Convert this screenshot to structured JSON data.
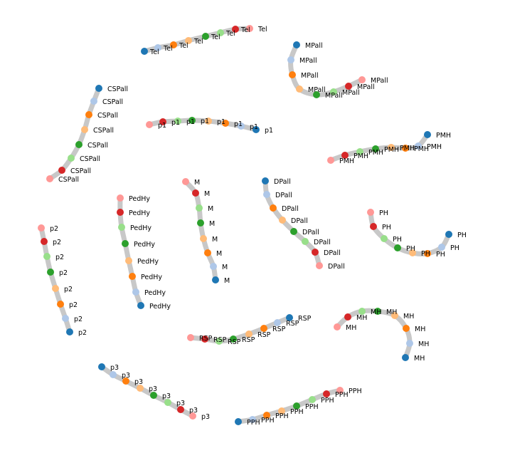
{
  "palette": {
    "c1": "#1f77b4",
    "c2": "#aec7e8",
    "c3": "#ff7f0e",
    "c4": "#ffbb78",
    "c5": "#2ca02c",
    "c6": "#98df8a",
    "c7": "#d62728",
    "c8": "#ff9896",
    "trajectory": "#c8c8c8"
  },
  "chart_data": {
    "type": "diagram",
    "trajectories": [
      {
        "label": "Tel",
        "count": 8
      },
      {
        "label": "MPall",
        "count": 8
      },
      {
        "label": "CSPall",
        "count": 8
      },
      {
        "label": "p1",
        "count": 8
      },
      {
        "label": "PMH",
        "count": 8
      },
      {
        "label": "M",
        "count": 8
      },
      {
        "label": "DPall",
        "count": 8
      },
      {
        "label": "PedHy",
        "count": 8
      },
      {
        "label": "p2",
        "count": 8
      },
      {
        "label": "PH",
        "count": 8
      },
      {
        "label": "MH",
        "count": 8
      },
      {
        "label": "RSP",
        "count": 8
      },
      {
        "label": "p3",
        "count": 8
      },
      {
        "label": "PPH",
        "count": 8
      }
    ]
  }
}
